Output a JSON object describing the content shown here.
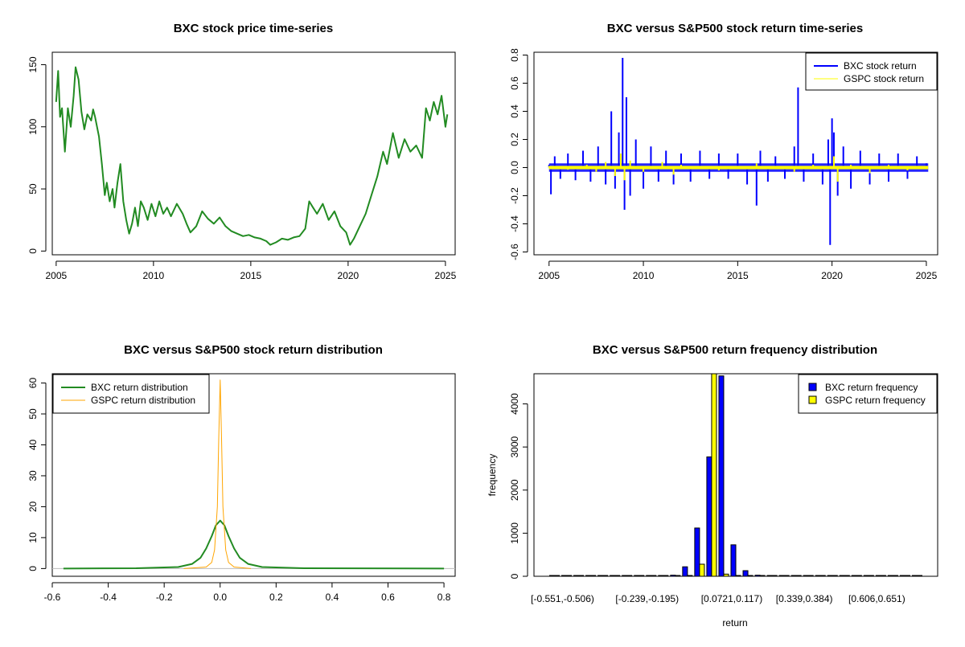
{
  "colors": {
    "price": "#228B22",
    "bxc_return": "#0000ff",
    "gspc_return": "#ffff00",
    "bxc_density": "#228B22",
    "gspc_density": "#FFA500",
    "bxc_bar": "#0000ff",
    "gspc_bar": "#ffff00"
  },
  "chart_data": [
    {
      "type": "line",
      "title": "BXC stock price time-series",
      "xlabel": "",
      "ylabel": "",
      "xlim": [
        2004.8,
        2025.5
      ],
      "ylim": [
        -3,
        160
      ],
      "xticks": [
        2005,
        2010,
        2015,
        2020,
        2025
      ],
      "xtick_labels": [
        "2005",
        "2010",
        "2015",
        "2020",
        "2025"
      ],
      "yticks": [
        0,
        50,
        100,
        150
      ],
      "ytick_labels": [
        "0",
        "50",
        "100",
        "150"
      ],
      "series": [
        {
          "name": "BXC price",
          "x": [
            2005.0,
            2005.1,
            2005.2,
            2005.3,
            2005.45,
            2005.6,
            2005.75,
            2005.9,
            2006.0,
            2006.15,
            2006.3,
            2006.45,
            2006.6,
            2006.8,
            2006.9,
            2007.0,
            2007.2,
            2007.35,
            2007.5,
            2007.6,
            2007.75,
            2007.9,
            2008.0,
            2008.15,
            2008.3,
            2008.45,
            2008.6,
            2008.75,
            2008.9,
            2009.05,
            2009.2,
            2009.35,
            2009.5,
            2009.7,
            2009.9,
            2010.1,
            2010.3,
            2010.5,
            2010.7,
            2010.9,
            2011.2,
            2011.5,
            2011.7,
            2011.9,
            2012.2,
            2012.5,
            2012.8,
            2013.1,
            2013.4,
            2013.7,
            2014.0,
            2014.3,
            2014.6,
            2014.9,
            2015.2,
            2015.5,
            2015.8,
            2016.0,
            2016.3,
            2016.6,
            2016.9,
            2017.2,
            2017.5,
            2017.8,
            2018.0,
            2018.2,
            2018.4,
            2018.7,
            2019.0,
            2019.3,
            2019.6,
            2019.9,
            2020.1,
            2020.3,
            2020.6,
            2020.9,
            2021.2,
            2021.5,
            2021.8,
            2022.0,
            2022.3,
            2022.6,
            2022.9,
            2023.2,
            2023.5,
            2023.8,
            2024.0,
            2024.2,
            2024.4,
            2024.6,
            2024.8,
            2025.0,
            2025.1
          ],
          "values": [
            120,
            145,
            108,
            115,
            80,
            115,
            100,
            125,
            148,
            138,
            112,
            98,
            110,
            105,
            114,
            108,
            92,
            70,
            45,
            55,
            40,
            50,
            35,
            55,
            70,
            40,
            25,
            14,
            22,
            35,
            20,
            40,
            35,
            25,
            38,
            28,
            40,
            30,
            35,
            28,
            38,
            30,
            22,
            15,
            20,
            32,
            26,
            22,
            27,
            20,
            16,
            14,
            12,
            13,
            11,
            10,
            8,
            5,
            7,
            10,
            9,
            11,
            12,
            18,
            40,
            35,
            30,
            38,
            25,
            32,
            20,
            15,
            5,
            10,
            20,
            30,
            45,
            60,
            80,
            70,
            95,
            75,
            90,
            80,
            85,
            75,
            115,
            105,
            120,
            110,
            125,
            100,
            110
          ]
        }
      ]
    },
    {
      "type": "line",
      "title": "BXC versus S&P500 stock return time-series",
      "xlabel": "",
      "ylabel": "",
      "xlim": [
        2004.2,
        2025.6
      ],
      "ylim": [
        -0.62,
        0.82
      ],
      "xticks": [
        2005,
        2010,
        2015,
        2020,
        2025
      ],
      "xtick_labels": [
        "2005",
        "2010",
        "2015",
        "2020",
        "2025"
      ],
      "yticks": [
        -0.6,
        -0.4,
        -0.2,
        0.0,
        0.2,
        0.4,
        0.6,
        0.8
      ],
      "ytick_labels": [
        "-0.6",
        "-0.4",
        "-0.2",
        "0.0",
        "0.2",
        "0.4",
        "0.6",
        "0.8"
      ],
      "legend": [
        "BXC stock return",
        "GSPC stock return"
      ],
      "legend_position": "top-right",
      "series": [
        {
          "name": "BXC stock return",
          "x": [
            2005.0,
            2005.1,
            2005.3,
            2005.6,
            2006.0,
            2006.4,
            2006.8,
            2007.2,
            2007.6,
            2008.0,
            2008.3,
            2008.5,
            2008.7,
            2008.9,
            2009.0,
            2009.1,
            2009.3,
            2009.6,
            2010.0,
            2010.4,
            2010.8,
            2011.2,
            2011.6,
            2012.0,
            2012.5,
            2013.0,
            2013.5,
            2014.0,
            2014.5,
            2015.0,
            2015.5,
            2016.0,
            2016.2,
            2016.6,
            2017.0,
            2017.5,
            2018.0,
            2018.2,
            2018.5,
            2019.0,
            2019.5,
            2019.8,
            2019.9,
            2020.0,
            2020.1,
            2020.3,
            2020.6,
            2021.0,
            2021.5,
            2022.0,
            2022.5,
            2023.0,
            2023.5,
            2024.0,
            2024.5,
            2025.0
          ],
          "values": [
            0.02,
            -0.19,
            0.08,
            -0.08,
            0.1,
            -0.09,
            0.12,
            -0.1,
            0.15,
            -0.12,
            0.4,
            -0.15,
            0.25,
            0.78,
            -0.3,
            0.5,
            -0.2,
            0.2,
            -0.15,
            0.15,
            -0.1,
            0.12,
            -0.12,
            0.1,
            -0.1,
            0.12,
            -0.08,
            0.1,
            -0.08,
            0.1,
            -0.12,
            -0.27,
            0.12,
            -0.1,
            0.08,
            -0.08,
            0.15,
            0.57,
            -0.1,
            0.1,
            -0.12,
            0.2,
            -0.55,
            0.35,
            0.25,
            -0.2,
            0.15,
            -0.15,
            0.12,
            -0.12,
            0.1,
            -0.1,
            0.1,
            -0.08,
            0.08,
            0.03
          ]
        },
        {
          "name": "GSPC stock return",
          "x": [
            2005.0,
            2006.0,
            2007.0,
            2007.5,
            2008.0,
            2008.5,
            2008.8,
            2009.0,
            2009.3,
            2010.0,
            2011.0,
            2011.6,
            2012.0,
            2014.0,
            2016.0,
            2018.0,
            2019.0,
            2020.1,
            2020.3,
            2021.0,
            2022.0,
            2023.0,
            2024.0,
            2025.0
          ],
          "values": [
            0.01,
            -0.015,
            0.02,
            -0.03,
            0.04,
            -0.06,
            0.1,
            -0.09,
            0.05,
            -0.03,
            0.04,
            -0.05,
            0.02,
            -0.02,
            0.03,
            -0.03,
            0.02,
            0.08,
            -0.1,
            0.02,
            -0.04,
            0.02,
            -0.02,
            0.01
          ]
        }
      ]
    },
    {
      "type": "line",
      "title": "BXC versus S&P500 stock return distribution",
      "xlabel": "",
      "ylabel": "",
      "xlim": [
        -0.6,
        0.84
      ],
      "ylim": [
        -2.5,
        63
      ],
      "xticks": [
        -0.6,
        -0.4,
        -0.2,
        0.0,
        0.2,
        0.4,
        0.6,
        0.8
      ],
      "xtick_labels": [
        "-0.6",
        "-0.4",
        "-0.2",
        "0.0",
        "0.2",
        "0.4",
        "0.6",
        "0.8"
      ],
      "yticks": [
        0,
        10,
        20,
        30,
        40,
        50,
        60
      ],
      "ytick_labels": [
        "0",
        "10",
        "20",
        "30",
        "40",
        "50",
        "60"
      ],
      "legend": [
        "BXC return distribution",
        "GSPC return distribution"
      ],
      "legend_position": "top-left",
      "series": [
        {
          "name": "BXC return distribution",
          "x": [
            -0.56,
            -0.3,
            -0.15,
            -0.1,
            -0.07,
            -0.05,
            -0.03,
            -0.015,
            0.0,
            0.015,
            0.03,
            0.05,
            0.07,
            0.1,
            0.15,
            0.3,
            0.8
          ],
          "values": [
            0,
            0.1,
            0.5,
            1.5,
            3.5,
            6.5,
            10.5,
            14,
            15.5,
            14,
            10.5,
            6.5,
            3.5,
            1.5,
            0.5,
            0.1,
            0
          ]
        },
        {
          "name": "GSPC return distribution",
          "x": [
            -0.13,
            -0.05,
            -0.03,
            -0.02,
            -0.01,
            -0.005,
            0.0,
            0.005,
            0.01,
            0.02,
            0.03,
            0.05,
            0.11
          ],
          "values": [
            0,
            0.5,
            2,
            6,
            20,
            42,
            61,
            42,
            20,
            6,
            2,
            0.5,
            0
          ]
        }
      ]
    },
    {
      "type": "bar",
      "title": "BXC versus S&P500 return frequency distribution",
      "xlabel": "return",
      "ylabel": "frequency",
      "ylim": [
        0,
        4700
      ],
      "yticks": [
        0,
        1000,
        2000,
        3000,
        4000
      ],
      "ytick_labels": [
        "0",
        "1000",
        "2000",
        "3000",
        "4000"
      ],
      "tick_labels": [
        "[-0.551,-0.506)",
        "[-0.239,-0.195)",
        "[0.0721,0.117)",
        "[0.339,0.384)",
        "[0.606,0.651)"
      ],
      "tick_label_bins": [
        0,
        7,
        14,
        20,
        26
      ],
      "legend": [
        "BXC return frequency",
        "GSPC return frequency"
      ],
      "legend_position": "top-right",
      "series": [
        {
          "name": "BXC return frequency",
          "values": [
            1,
            0,
            0,
            0,
            0,
            0,
            1,
            2,
            5,
            10,
            25,
            220,
            1120,
            2770,
            4650,
            730,
            130,
            25,
            10,
            5,
            2,
            1,
            0,
            1,
            0,
            0,
            0,
            0,
            0,
            0,
            1
          ]
        },
        {
          "name": "GSPC return frequency",
          "values": [
            0,
            0,
            0,
            0,
            0,
            0,
            0,
            0,
            0,
            0,
            0,
            2,
            280,
            4700,
            50,
            3,
            0,
            0,
            0,
            0,
            0,
            0,
            0,
            0,
            0,
            0,
            0,
            0,
            0,
            0,
            0
          ]
        }
      ]
    }
  ]
}
